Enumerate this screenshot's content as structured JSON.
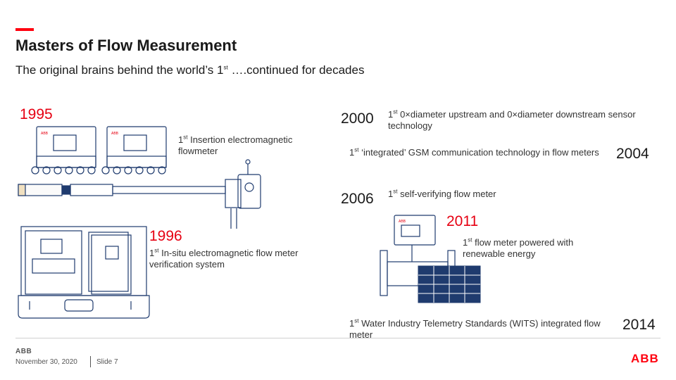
{
  "header": {
    "title": "Masters of Flow Measurement",
    "subtitle_pre": "The original brains behind the world’s 1",
    "subtitle_sup": "st",
    "subtitle_post": " ….continued for decades"
  },
  "milestones": [
    {
      "year": "1995",
      "sup": "st",
      "text": " Insertion electromagnetic flowmeter"
    },
    {
      "year": "1996",
      "sup": "st",
      "text": " In-situ electromagnetic flow meter verification system"
    },
    {
      "year": "2000",
      "sup": "st",
      "text": " 0×diameter upstream and 0×diameter downstream sensor technology"
    },
    {
      "year": "2004",
      "sup": "st",
      "text": " ‘integrated’ GSM communication technology in flow meters"
    },
    {
      "year": "2006",
      "sup": "st",
      "text": " self-verifying flow meter"
    },
    {
      "year": "2011",
      "sup": "st",
      "text": " flow meter powered with renewable energy"
    },
    {
      "year": "2014",
      "sup": "st",
      "text": " Water Industry Telemetry Standards (WITS) integrated flow meter"
    }
  ],
  "ordinal_prefix": "1",
  "device_badge": "ABB",
  "footer": {
    "logo_small": "ABB",
    "date": "November 30, 2020",
    "slide": "Slide 7",
    "logo": "ABB"
  },
  "colors": {
    "accent": "#ff000f",
    "year_red": "#e60012",
    "illustration": "#1f3b6e"
  },
  "icons": [
    "transmitter-icon",
    "insertion-probe-icon",
    "verification-case-icon",
    "solar-flowmeter-icon"
  ]
}
